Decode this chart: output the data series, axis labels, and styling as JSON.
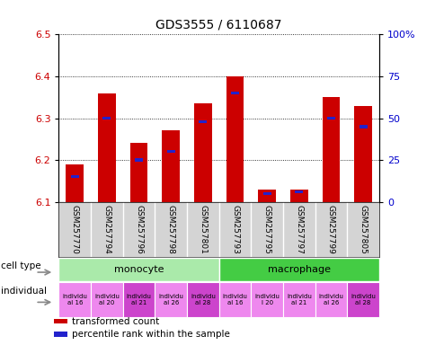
{
  "title": "GDS3555 / 6110687",
  "samples": [
    "GSM257770",
    "GSM257794",
    "GSM257796",
    "GSM257798",
    "GSM257801",
    "GSM257793",
    "GSM257795",
    "GSM257797",
    "GSM257799",
    "GSM257805"
  ],
  "transformed_count": [
    6.19,
    6.36,
    6.24,
    6.27,
    6.335,
    6.4,
    6.13,
    6.13,
    6.35,
    6.33
  ],
  "percentile_rank": [
    15,
    50,
    25,
    30,
    48,
    65,
    5,
    6,
    50,
    45
  ],
  "ylim": [
    6.1,
    6.5
  ],
  "y_ticks_left": [
    6.1,
    6.2,
    6.3,
    6.4,
    6.5
  ],
  "y_ticks_right": [
    0,
    25,
    50,
    75,
    100
  ],
  "bar_color": "#cc0000",
  "pct_color": "#2222cc",
  "cell_types": [
    {
      "label": "monocyte",
      "start": 0,
      "end": 5,
      "color": "#aaeaaa"
    },
    {
      "label": "macrophage",
      "start": 5,
      "end": 10,
      "color": "#44cc44"
    }
  ],
  "ind_labels": [
    "individu\nal 16",
    "individu\nal 20",
    "individu\nal 21",
    "individu\nal 26",
    "individu\nal 28",
    "individu\nal 16",
    "individu\nl 20",
    "individu\nal 21",
    "individu\nal 26",
    "individu\nal 28"
  ],
  "ind_colors": [
    "#ee88ee",
    "#ee88ee",
    "#cc44cc",
    "#ee88ee",
    "#cc44cc",
    "#ee88ee",
    "#ee88ee",
    "#ee88ee",
    "#ee88ee",
    "#cc44cc"
  ],
  "left_label_color": "#cc0000",
  "right_label_color": "#0000cc",
  "base_value": 6.1,
  "legend_entries": [
    {
      "color": "#cc0000",
      "label": "transformed count"
    },
    {
      "color": "#2222cc",
      "label": "percentile rank within the sample"
    }
  ]
}
